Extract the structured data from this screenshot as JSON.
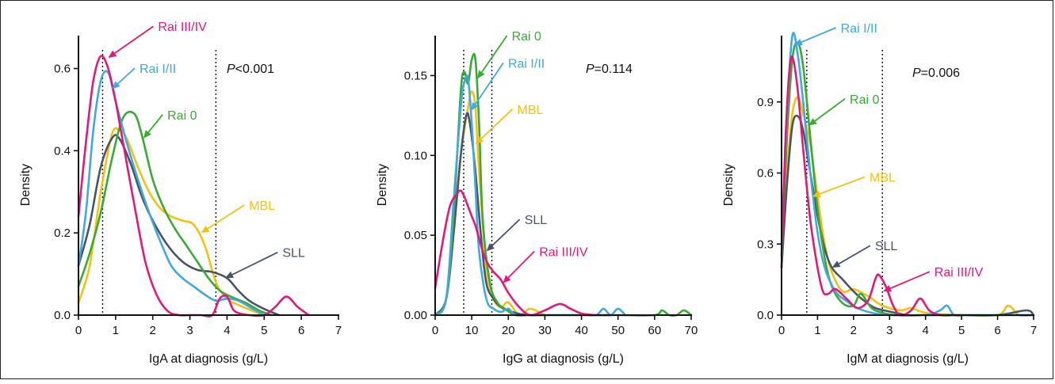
{
  "colors": {
    "rai_0": "#3aa935",
    "rai_1_2": "#41a9dd",
    "rai_3_4": "#e0197b",
    "mbl": "#f4c113",
    "sll": "#4a5468"
  },
  "chart_data": [
    {
      "type": "line",
      "xlabel": "IgA at diagnosis (g/L)",
      "ylabel": "Density",
      "xlim": [
        0,
        7
      ],
      "ylim": [
        0,
        0.68
      ],
      "xticks": [
        "0",
        "1",
        "2",
        "3",
        "4",
        "5",
        "6",
        "7"
      ],
      "yticks": [
        "0.0",
        "0.2",
        "0.4",
        "0.6"
      ],
      "ytick_values": [
        0,
        0.2,
        0.4,
        0.6
      ],
      "pvalue": "<0.001",
      "reference_lines_x": [
        0.65,
        3.7
      ],
      "series": [
        {
          "name": "MBL",
          "color_key": "mbl",
          "x": [
            0,
            0.3,
            0.6,
            0.9,
            1.1,
            1.3,
            1.6,
            1.9,
            2.2,
            2.5,
            2.8,
            3.1,
            3.4,
            3.7,
            4.0,
            4.3,
            4.7,
            5.0
          ],
          "y": [
            0.03,
            0.12,
            0.3,
            0.44,
            0.45,
            0.43,
            0.36,
            0.3,
            0.26,
            0.24,
            0.23,
            0.22,
            0.17,
            0.08,
            0.04,
            0.025,
            0.01,
            0.0
          ]
        },
        {
          "name": "SLL",
          "color_key": "sll",
          "x": [
            0,
            0.3,
            0.6,
            0.9,
            1.1,
            1.4,
            1.7,
            2.0,
            2.4,
            2.8,
            3.2,
            3.6,
            4.0,
            4.3,
            4.6,
            5.0,
            5.4
          ],
          "y": [
            0.12,
            0.22,
            0.36,
            0.43,
            0.43,
            0.37,
            0.29,
            0.23,
            0.17,
            0.13,
            0.11,
            0.105,
            0.09,
            0.06,
            0.035,
            0.015,
            0.0
          ]
        },
        {
          "name": "Rai 0",
          "color_key": "rai_0",
          "x": [
            0,
            0.3,
            0.6,
            0.9,
            1.2,
            1.5,
            1.7,
            2.0,
            2.3,
            2.6,
            2.9,
            3.2,
            3.5,
            3.8,
            4.1,
            4.5,
            4.9,
            5.2
          ],
          "y": [
            0.07,
            0.15,
            0.25,
            0.38,
            0.48,
            0.49,
            0.44,
            0.33,
            0.26,
            0.21,
            0.17,
            0.13,
            0.09,
            0.06,
            0.045,
            0.03,
            0.01,
            0.0
          ]
        },
        {
          "name": "Rai I/II",
          "color_key": "rai_1_2",
          "x": [
            0,
            0.2,
            0.4,
            0.6,
            0.8,
            1.0,
            1.3,
            1.6,
            1.9,
            2.2,
            2.5,
            2.8,
            3.1,
            3.4,
            3.7,
            4.0,
            4.3,
            4.7,
            5.0
          ],
          "y": [
            0.12,
            0.25,
            0.45,
            0.57,
            0.59,
            0.52,
            0.42,
            0.33,
            0.25,
            0.18,
            0.12,
            0.09,
            0.07,
            0.05,
            0.035,
            0.04,
            0.035,
            0.015,
            0.0
          ]
        },
        {
          "name": "Rai III/IV",
          "color_key": "rai_3_4",
          "x": [
            0,
            0.2,
            0.4,
            0.6,
            0.8,
            1.0,
            1.2,
            1.5,
            1.8,
            2.1,
            2.4,
            2.7,
            3.0,
            3.3,
            3.6,
            3.8,
            4.0,
            4.2,
            4.6,
            5.0,
            5.3,
            5.6,
            5.9,
            6.2
          ],
          "y": [
            0.24,
            0.42,
            0.57,
            0.63,
            0.6,
            0.52,
            0.42,
            0.27,
            0.13,
            0.05,
            0.01,
            0.0,
            0.0,
            0.0,
            0.0,
            0.04,
            0.045,
            0.01,
            0.0,
            0.0,
            0.02,
            0.045,
            0.02,
            0.0
          ]
        }
      ],
      "labels": [
        {
          "series": "Rai III/IV",
          "text": "Rai III/IV",
          "x": 0.8,
          "y": 0.626,
          "lx": 2.1,
          "ly": 0.695
        },
        {
          "series": "Rai I/II",
          "text": "Rai I/II",
          "x": 0.9,
          "y": 0.55,
          "lx": 1.6,
          "ly": 0.593
        },
        {
          "series": "Rai 0",
          "text": "Rai 0",
          "x": 1.75,
          "y": 0.43,
          "lx": 2.35,
          "ly": 0.48
        },
        {
          "series": "MBL",
          "text": "MBL",
          "x": 3.3,
          "y": 0.2,
          "lx": 4.55,
          "ly": 0.26
        },
        {
          "series": "SLL",
          "text": "SLL",
          "x": 3.95,
          "y": 0.09,
          "lx": 5.45,
          "ly": 0.145
        }
      ]
    },
    {
      "type": "line",
      "xlabel": "IgG at diagnosis (g/L)",
      "ylabel": "Density",
      "xlim": [
        0,
        70
      ],
      "ylim": [
        0,
        0.175
      ],
      "xticks": [
        "0",
        "10",
        "20",
        "30",
        "40",
        "50",
        "60",
        "70"
      ],
      "yticks": [
        "0.00",
        "0.05",
        "0.10",
        "0.15"
      ],
      "ytick_values": [
        0,
        0.05,
        0.1,
        0.15
      ],
      "pvalue": "=0.114",
      "reference_lines_x": [
        7.8,
        15.5
      ],
      "series": [
        {
          "name": "MBL",
          "color_key": "mbl",
          "x": [
            0,
            3,
            5,
            7,
            9,
            10,
            11,
            12,
            14,
            16,
            18,
            20,
            23,
            26,
            30
          ],
          "y": [
            0.0,
            0.01,
            0.05,
            0.1,
            0.13,
            0.14,
            0.13,
            0.09,
            0.03,
            0.01,
            0.005,
            0.008,
            0.0,
            0.004,
            0.0
          ]
        },
        {
          "name": "SLL",
          "color_key": "sll",
          "x": [
            0,
            3,
            5,
            7,
            8.5,
            9.5,
            11,
            12.5,
            14,
            16,
            18,
            21,
            25,
            30
          ],
          "y": [
            0.0,
            0.01,
            0.05,
            0.1,
            0.125,
            0.12,
            0.09,
            0.05,
            0.02,
            0.01,
            0.005,
            0.002,
            0.0,
            0.0
          ]
        },
        {
          "name": "Rai 0",
          "color_key": "rai_0",
          "x": [
            0,
            3,
            5,
            7,
            8,
            9,
            10,
            11,
            12,
            13,
            15,
            17,
            19,
            22,
            26,
            30,
            40,
            50,
            60,
            62,
            64,
            66,
            68,
            70
          ],
          "y": [
            0.0,
            0.01,
            0.06,
            0.14,
            0.152,
            0.145,
            0.16,
            0.16,
            0.12,
            0.06,
            0.02,
            0.008,
            0.004,
            0.0,
            0.0,
            0.0,
            0.0,
            0.0,
            0.0,
            0.003,
            0.0,
            0.0,
            0.003,
            0.0
          ]
        },
        {
          "name": "Rai I/II",
          "color_key": "rai_1_2",
          "x": [
            0,
            3,
            5,
            7,
            8,
            9,
            10,
            11,
            12,
            14,
            16,
            18,
            20,
            22,
            26,
            30,
            40,
            44,
            46,
            48,
            50,
            52
          ],
          "y": [
            0.0,
            0.01,
            0.07,
            0.13,
            0.146,
            0.148,
            0.12,
            0.08,
            0.04,
            0.01,
            0.004,
            0.002,
            0.004,
            0.0,
            0.0,
            0.0,
            0.0,
            0.0,
            0.004,
            0.0,
            0.004,
            0.0
          ]
        },
        {
          "name": "Rai III/IV",
          "color_key": "rai_3_4",
          "x": [
            0,
            2,
            4,
            6,
            7,
            8,
            9,
            10,
            11,
            12,
            13,
            14,
            15,
            16,
            18,
            20,
            23,
            26,
            30,
            34,
            37,
            40,
            44,
            48
          ],
          "y": [
            0.017,
            0.045,
            0.068,
            0.076,
            0.078,
            0.074,
            0.068,
            0.062,
            0.056,
            0.048,
            0.04,
            0.034,
            0.03,
            0.027,
            0.022,
            0.014,
            0.005,
            0.0,
            0.003,
            0.007,
            0.004,
            0.001,
            0.0,
            0.0
          ]
        }
      ],
      "labels": [
        {
          "series": "Rai 0",
          "text": "Rai 0",
          "x": 11.5,
          "y": 0.148,
          "lx": 20.5,
          "ly": 0.173
        },
        {
          "series": "Rai I/II",
          "text": "Rai I/II",
          "x": 9.8,
          "y": 0.128,
          "lx": 19.5,
          "ly": 0.156
        },
        {
          "series": "MBL",
          "text": "MBL",
          "x": 11,
          "y": 0.107,
          "lx": 22,
          "ly": 0.127
        },
        {
          "series": "SLL",
          "text": "SLL",
          "x": 14,
          "y": 0.04,
          "lx": 24,
          "ly": 0.058
        },
        {
          "series": "Rai III/IV",
          "text": "Rai III/IV",
          "x": 18.5,
          "y": 0.02,
          "lx": 28,
          "ly": 0.038
        }
      ]
    },
    {
      "type": "line",
      "xlabel": "IgM at diagnosis (g/L)",
      "ylabel": "Density",
      "xlim": [
        0,
        7
      ],
      "ylim": [
        0,
        1.18
      ],
      "xticks": [
        "0",
        "1",
        "2",
        "3",
        "4",
        "5",
        "6",
        "7"
      ],
      "yticks": [
        "0.0",
        "0.3",
        "0.6",
        "0.9"
      ],
      "ytick_values": [
        0,
        0.3,
        0.6,
        0.9
      ],
      "pvalue": "=0.006",
      "reference_lines_x": [
        0.7,
        2.8
      ],
      "series": [
        {
          "name": "MBL",
          "color_key": "mbl",
          "x": [
            0,
            0.15,
            0.3,
            0.45,
            0.6,
            0.8,
            1.0,
            1.2,
            1.4,
            1.7,
            2.0,
            2.4,
            2.8,
            3.3,
            3.6,
            4.0,
            5.0,
            6.0,
            6.3,
            6.6,
            7.0
          ],
          "y": [
            0.2,
            0.6,
            0.85,
            0.92,
            0.85,
            0.72,
            0.5,
            0.3,
            0.18,
            0.1,
            0.11,
            0.08,
            0.04,
            0.02,
            0.03,
            0.01,
            0.0,
            0.0,
            0.04,
            0.0,
            0.0
          ]
        },
        {
          "name": "SLL",
          "color_key": "sll",
          "x": [
            0,
            0.15,
            0.3,
            0.45,
            0.6,
            0.8,
            1.0,
            1.2,
            1.4,
            1.7,
            2.0,
            2.3,
            2.6,
            3.0,
            3.5,
            4.0,
            5.0,
            6.0,
            6.8,
            7.0
          ],
          "y": [
            0.2,
            0.55,
            0.8,
            0.84,
            0.78,
            0.6,
            0.42,
            0.28,
            0.2,
            0.15,
            0.1,
            0.06,
            0.03,
            0.015,
            0.0,
            0.0,
            0.0,
            0.0,
            0.02,
            0.0
          ]
        },
        {
          "name": "Rai 0",
          "color_key": "rai_0",
          "x": [
            0,
            0.15,
            0.3,
            0.45,
            0.6,
            0.8,
            1.0,
            1.2,
            1.4,
            1.7,
            2.0,
            2.2,
            2.5,
            2.8,
            3.2,
            4.0,
            5.0,
            6.0,
            7.0
          ],
          "y": [
            0.25,
            0.75,
            1.08,
            1.15,
            1.05,
            0.75,
            0.45,
            0.24,
            0.12,
            0.05,
            0.04,
            0.09,
            0.03,
            0.01,
            0.0,
            0.0,
            0.0,
            0.0,
            0.0
          ]
        },
        {
          "name": "Rai I/II",
          "color_key": "rai_1_2",
          "x": [
            0,
            0.15,
            0.3,
            0.45,
            0.6,
            0.8,
            1.0,
            1.2,
            1.5,
            1.8,
            2.1,
            2.5,
            3.0,
            4.0,
            4.4,
            4.6,
            4.8,
            5.2,
            6.0,
            7.0
          ],
          "y": [
            0.3,
            0.85,
            1.18,
            1.1,
            0.9,
            0.6,
            0.35,
            0.2,
            0.1,
            0.06,
            0.03,
            0.01,
            0.0,
            0.0,
            0.02,
            0.04,
            0.0,
            0.0,
            0.0,
            0.0
          ]
        },
        {
          "name": "Rai III/IV",
          "color_key": "rai_3_4",
          "x": [
            0,
            0.1,
            0.2,
            0.3,
            0.45,
            0.6,
            0.8,
            1.0,
            1.15,
            1.3,
            1.5,
            1.8,
            2.1,
            2.4,
            2.6,
            2.7,
            2.9,
            3.1,
            3.3,
            3.6,
            3.85,
            4.1,
            4.4,
            4.8
          ],
          "y": [
            0.2,
            0.7,
            1.0,
            1.09,
            0.95,
            0.7,
            0.4,
            0.2,
            0.1,
            0.09,
            0.11,
            0.07,
            0.03,
            0.06,
            0.15,
            0.17,
            0.12,
            0.04,
            0.0,
            0.02,
            0.07,
            0.02,
            0.0,
            0.0
          ]
        }
      ],
      "labels": [
        {
          "series": "Rai I/II",
          "text": "Rai I/II",
          "x": 0.35,
          "y": 1.14,
          "lx": 1.6,
          "ly": 1.2
        },
        {
          "series": "Rai 0",
          "text": "Rai 0",
          "x": 0.75,
          "y": 0.8,
          "lx": 1.85,
          "ly": 0.9
        },
        {
          "series": "MBL",
          "text": "MBL",
          "x": 0.85,
          "y": 0.5,
          "lx": 2.4,
          "ly": 0.57
        },
        {
          "series": "SLL",
          "text": "SLL",
          "x": 1.4,
          "y": 0.2,
          "lx": 2.55,
          "ly": 0.28
        },
        {
          "series": "Rai III/IV",
          "text": "Rai III/IV",
          "x": 2.82,
          "y": 0.1,
          "lx": 4.2,
          "ly": 0.17
        }
      ]
    }
  ]
}
